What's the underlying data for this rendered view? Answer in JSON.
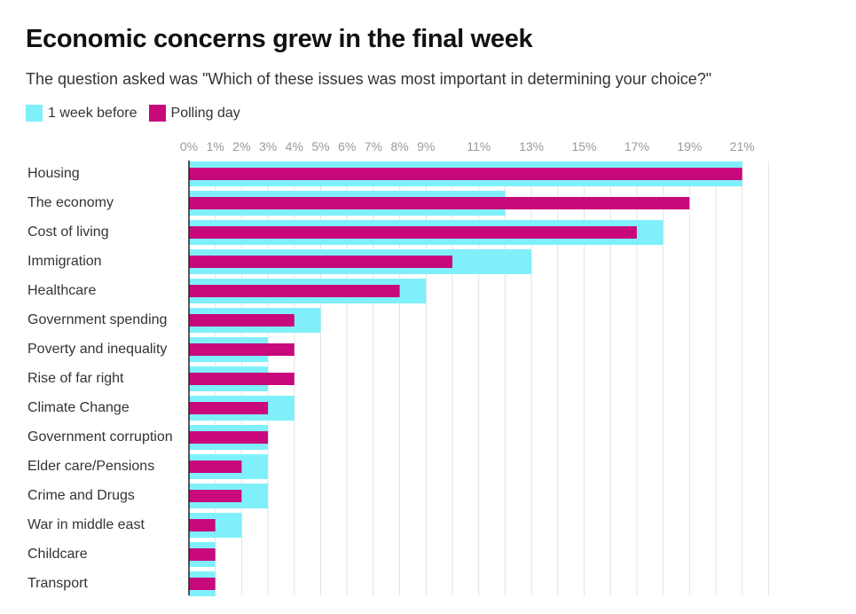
{
  "title": "Economic concerns grew in the final week",
  "subtitle": "The question asked was \"Which of these issues was most important in determining your choice?\"",
  "legend": {
    "before": {
      "label": "1 week before",
      "color": "#7ff0fa"
    },
    "polling": {
      "label": "Polling day",
      "color": "#c8097c"
    }
  },
  "chart_data": {
    "type": "bar",
    "orientation": "horizontal",
    "title": "Economic concerns grew in the final week",
    "xlabel": "",
    "ylabel": "",
    "xlim": [
      0,
      22
    ],
    "value_format": "percent",
    "ticks": [
      0,
      1,
      2,
      3,
      4,
      5,
      6,
      7,
      8,
      9,
      11,
      13,
      15,
      17,
      19,
      21
    ],
    "tick_labels": [
      "0%",
      "1%",
      "2%",
      "3%",
      "4%",
      "5%",
      "6%",
      "7%",
      "8%",
      "9%",
      "11%",
      "13%",
      "15%",
      "17%",
      "19%",
      "21%"
    ],
    "categories": [
      "Housing",
      "The economy",
      "Cost of living",
      "Immigration",
      "Healthcare",
      "Government spending",
      "Poverty and inequality",
      "Rise of far right",
      "Climate Change",
      "Government corruption",
      "Elder care/Pensions",
      "Crime and Drugs",
      "War in middle east",
      "Childcare",
      "Transport"
    ],
    "series": [
      {
        "name": "1 week before",
        "color": "#7ff0fa",
        "values": [
          21,
          12,
          18,
          13,
          9,
          5,
          3,
          3,
          4,
          3,
          3,
          3,
          2,
          1,
          1
        ]
      },
      {
        "name": "Polling day",
        "color": "#c8097c",
        "values": [
          21,
          19,
          17,
          10,
          8,
          4,
          4,
          4,
          3,
          3,
          2,
          2,
          1,
          1,
          1
        ]
      }
    ]
  }
}
